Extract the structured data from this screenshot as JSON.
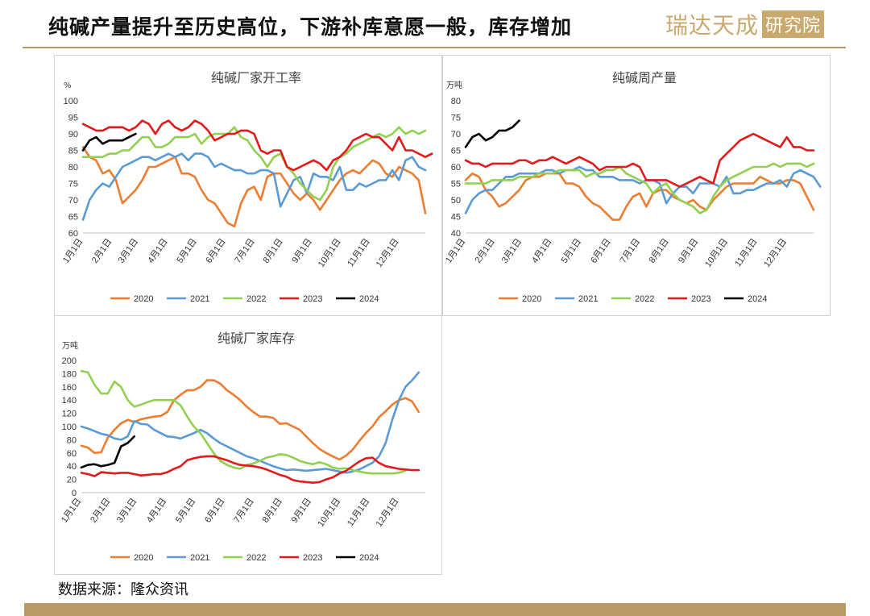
{
  "header": {
    "title": "纯碱产量提升至历史高位，下游补库意愿一般，库存增加",
    "logo_main": "瑞达天成",
    "logo_box": "研究院"
  },
  "footer": {
    "source": "数据来源：隆众资讯"
  },
  "colors": {
    "2020": "#ed7d31",
    "2021": "#5b9bd5",
    "2022": "#92d050",
    "2023": "#e31a1c",
    "2024": "#000000"
  },
  "chart_data": [
    {
      "type": "line",
      "title": "纯碱厂家开工率",
      "unit": "%",
      "ylim": [
        60,
        100
      ],
      "yticks": [
        60,
        65,
        70,
        75,
        80,
        85,
        90,
        95,
        100
      ],
      "x_range": [
        0,
        52
      ],
      "x_tick_positions": [
        0,
        4.4,
        8.4,
        12.9,
        17.3,
        21.7,
        26.1,
        30.4,
        34.8,
        39.2,
        43.6,
        48.0
      ],
      "x_tick_labels": [
        "1月1日",
        "2月1日",
        "3月1日",
        "4月1日",
        "5月1日",
        "6月1日",
        "7月1日",
        "8月1日",
        "9月1日",
        "10月1日",
        "11月1日",
        "12月1日"
      ],
      "legend_position": "bottom",
      "series": [
        {
          "name": "2020",
          "values": [
            86,
            83,
            82,
            78,
            79,
            76,
            69,
            71,
            73,
            76,
            80,
            80,
            81,
            82,
            83,
            78,
            78,
            77,
            73,
            70,
            69,
            66,
            63,
            62,
            69,
            73,
            74,
            70,
            77,
            78,
            78,
            75,
            72,
            70,
            72,
            70,
            67,
            70,
            73,
            76,
            78,
            79,
            78,
            80,
            82,
            81,
            78,
            77,
            80,
            79,
            78,
            76,
            66
          ]
        },
        {
          "name": "2021",
          "values": [
            64,
            70,
            73,
            75,
            74,
            77,
            80,
            81,
            82,
            83,
            83,
            82,
            83,
            84,
            83,
            84,
            82,
            84,
            84,
            83,
            80,
            81,
            80,
            79,
            79,
            78,
            78,
            79,
            79,
            78,
            68,
            72,
            76,
            77,
            72,
            78,
            77,
            77,
            76,
            80,
            73,
            73,
            75,
            74,
            75,
            76,
            76,
            79,
            76,
            82,
            83,
            80,
            79
          ]
        },
        {
          "name": "2022",
          "values": [
            83,
            83,
            83,
            83,
            84,
            84,
            85,
            85,
            87,
            89,
            89,
            86,
            86,
            87,
            89,
            89,
            89,
            90,
            87,
            89,
            90,
            90,
            90,
            92,
            89,
            88,
            85,
            83,
            80,
            83,
            84,
            80,
            78,
            75,
            73,
            71,
            70,
            73,
            80,
            83,
            84,
            86,
            87,
            88,
            89,
            90,
            89,
            90,
            92,
            90,
            91,
            90,
            91
          ]
        },
        {
          "name": "2023",
          "values": [
            93,
            92,
            91,
            91,
            92,
            92,
            92,
            91,
            92,
            94,
            93,
            90,
            93,
            94,
            92,
            91,
            92,
            94,
            93,
            91,
            88,
            89,
            90,
            90,
            91,
            91,
            90,
            85,
            84,
            85,
            85,
            80,
            79,
            80,
            81,
            82,
            81,
            79,
            82,
            83,
            85,
            88,
            89,
            90,
            89,
            89,
            87,
            85,
            89,
            85,
            85,
            84,
            83,
            84
          ]
        },
        {
          "name": "2024",
          "values": [
            85,
            88,
            89,
            87,
            88,
            88,
            88,
            89,
            90
          ]
        }
      ]
    },
    {
      "type": "line",
      "title": "纯碱周产量",
      "unit": "万吨",
      "ylim": [
        40,
        80
      ],
      "yticks": [
        40,
        45,
        50,
        55,
        60,
        65,
        70,
        75,
        80
      ],
      "x_range": [
        0,
        52
      ],
      "x_tick_positions": [
        0,
        4.4,
        8.4,
        12.9,
        17.3,
        21.7,
        26.1,
        30.4,
        34.8,
        39.2,
        43.6,
        48.0
      ],
      "x_tick_labels": [
        "1月1日",
        "2月1日",
        "3月1日",
        "4月1日",
        "5月1日",
        "6月1日",
        "7月1日",
        "8月1日",
        "9月1日",
        "10月1日",
        "11月1日",
        "12月1日"
      ],
      "legend_position": "bottom",
      "series": [
        {
          "name": "2020",
          "values": [
            56,
            58,
            57,
            53,
            51,
            48,
            49,
            51,
            53,
            56,
            57,
            57,
            58,
            58,
            58,
            55,
            55,
            54,
            51,
            49,
            48,
            46,
            44,
            44,
            48,
            51,
            52,
            48,
            52,
            53,
            53,
            51,
            50,
            49,
            50,
            48,
            47,
            50,
            52,
            54,
            55,
            55,
            55,
            55,
            57,
            56,
            55,
            55,
            56,
            56,
            55,
            51,
            47
          ]
        },
        {
          "name": "2021",
          "values": [
            46,
            50,
            52,
            53,
            53,
            55,
            57,
            57,
            58,
            58,
            58,
            58,
            59,
            59,
            58,
            59,
            59,
            60,
            59,
            59,
            57,
            57,
            57,
            56,
            56,
            56,
            55,
            56,
            56,
            55,
            49,
            52,
            54,
            54,
            52,
            55,
            55,
            55,
            54,
            57,
            52,
            52,
            53,
            53,
            54,
            55,
            55,
            56,
            54,
            58,
            59,
            58,
            57,
            54
          ]
        },
        {
          "name": "2022",
          "values": [
            55,
            55,
            55,
            55,
            56,
            56,
            56,
            56,
            57,
            57,
            57,
            58,
            58,
            58,
            59,
            59,
            59,
            59,
            57,
            58,
            58,
            59,
            59,
            60,
            58,
            57,
            56,
            55,
            52,
            54,
            55,
            52,
            50,
            49,
            48,
            46,
            47,
            51,
            54,
            56,
            57,
            58,
            59,
            60,
            60,
            60,
            61,
            60,
            61,
            61,
            61,
            60,
            61
          ]
        },
        {
          "name": "2023",
          "values": [
            62,
            61,
            61,
            60,
            61,
            61,
            61,
            61,
            62,
            62,
            61,
            62,
            62,
            63,
            62,
            61,
            62,
            63,
            62,
            61,
            59,
            60,
            60,
            60,
            60,
            61,
            60,
            56,
            56,
            56,
            56,
            55,
            54,
            55,
            56,
            57,
            56,
            55,
            62,
            64,
            66,
            68,
            69,
            70,
            69,
            68,
            67,
            66,
            69,
            66,
            66,
            65,
            65
          ]
        },
        {
          "name": "2024",
          "values": [
            66,
            69,
            70,
            68,
            69,
            71,
            71,
            72,
            74
          ]
        }
      ]
    },
    {
      "type": "line",
      "title": "纯碱厂家库存",
      "unit": "万吨",
      "ylim": [
        0,
        200
      ],
      "yticks": [
        0,
        20,
        40,
        60,
        80,
        100,
        120,
        140,
        160,
        180,
        200
      ],
      "x_range": [
        0,
        52
      ],
      "x_tick_positions": [
        0,
        4.4,
        8.4,
        12.9,
        17.3,
        21.7,
        26.1,
        30.4,
        34.8,
        39.2,
        43.6,
        48.0
      ],
      "x_tick_labels": [
        "1月1日",
        "2月1日",
        "3月1日",
        "4月1日",
        "5月1日",
        "6月1日",
        "7月1日",
        "8月1日",
        "9月1日",
        "10月1日",
        "11月1日",
        "12月1日"
      ],
      "legend_position": "bottom",
      "series": [
        {
          "name": "2020",
          "values": [
            71,
            68,
            60,
            61,
            83,
            95,
            105,
            110,
            107,
            111,
            113,
            115,
            116,
            122,
            140,
            148,
            155,
            155,
            160,
            170,
            170,
            165,
            155,
            148,
            140,
            130,
            122,
            115,
            115,
            113,
            104,
            105,
            100,
            95,
            85,
            75,
            66,
            60,
            55,
            50,
            56,
            65,
            78,
            90,
            100,
            114,
            123,
            133,
            140,
            143,
            138,
            122
          ]
        },
        {
          "name": "2021",
          "values": [
            100,
            97,
            93,
            89,
            87,
            82,
            80,
            85,
            108,
            104,
            103,
            95,
            90,
            85,
            84,
            82,
            86,
            90,
            95,
            90,
            82,
            75,
            70,
            65,
            60,
            55,
            52,
            48,
            44,
            40,
            37,
            34,
            35,
            34,
            33,
            34,
            35,
            36,
            34,
            32,
            30,
            32,
            35,
            40,
            45,
            55,
            75,
            110,
            140,
            160,
            170,
            182
          ]
        },
        {
          "name": "2022",
          "values": [
            184,
            182,
            163,
            150,
            150,
            168,
            160,
            140,
            130,
            133,
            137,
            140,
            140,
            140,
            140,
            132,
            115,
            100,
            90,
            75,
            60,
            48,
            42,
            38,
            36,
            42,
            44,
            48,
            53,
            55,
            58,
            57,
            53,
            48,
            45,
            43,
            46,
            43,
            38,
            36,
            37,
            34,
            32,
            30,
            29,
            29,
            29,
            29,
            30,
            33
          ]
        },
        {
          "name": "2023",
          "values": [
            30,
            28,
            25,
            31,
            30,
            29,
            30,
            30,
            28,
            26,
            27,
            28,
            28,
            31,
            36,
            40,
            49,
            52,
            54,
            55,
            55,
            52,
            49,
            45,
            42,
            41,
            40,
            38,
            35,
            31,
            27,
            24,
            19,
            17,
            16,
            15,
            16,
            20,
            23,
            29,
            33,
            40,
            47,
            52,
            53,
            45,
            40,
            38,
            36,
            35,
            34,
            34
          ]
        },
        {
          "name": "2024",
          "values": [
            38,
            42,
            43,
            40,
            42,
            45,
            70,
            75,
            85
          ]
        }
      ]
    }
  ]
}
